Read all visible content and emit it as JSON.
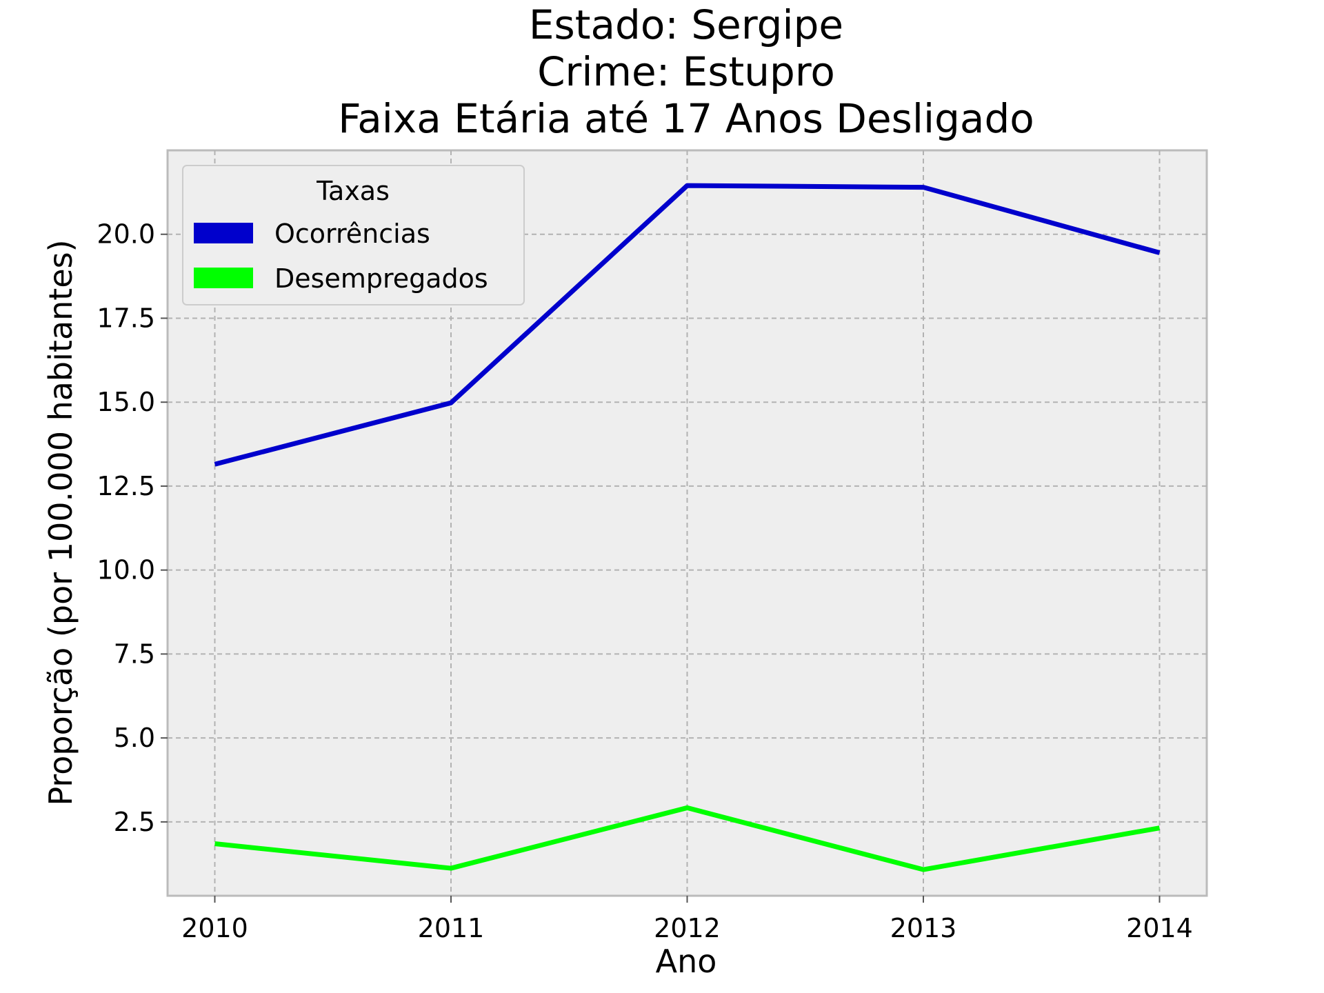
{
  "chart_data": {
    "type": "line",
    "title_lines": [
      "Estado: Sergipe",
      "Crime: Estupro",
      "Faixa Etária até 17 Anos   Desligado"
    ],
    "xlabel": "Ano",
    "ylabel": "Proporção (por 100.000 habitantes)",
    "x": [
      2010,
      2011,
      2012,
      2013,
      2014
    ],
    "x_ticks": [
      "2010",
      "2011",
      "2012",
      "2013",
      "2014"
    ],
    "y_ticks": [
      "2.5",
      "5.0",
      "7.5",
      "10.0",
      "12.5",
      "15.0",
      "17.5",
      "20.0"
    ],
    "y_tick_values": [
      2.5,
      5.0,
      7.5,
      10.0,
      12.5,
      15.0,
      17.5,
      20.0
    ],
    "ylim": [
      0.3,
      22.5
    ],
    "xlim": [
      2009.8,
      2014.2
    ],
    "grid": true,
    "legend": {
      "title": "Taxas",
      "placement": "top-left"
    },
    "series": [
      {
        "name": "Ocorrências",
        "color": "#0000cc",
        "values": [
          13.15,
          14.98,
          21.45,
          21.4,
          19.45
        ]
      },
      {
        "name": "Desempregados",
        "color": "#00ff00",
        "values": [
          1.85,
          1.12,
          2.92,
          1.08,
          2.32
        ]
      }
    ]
  }
}
